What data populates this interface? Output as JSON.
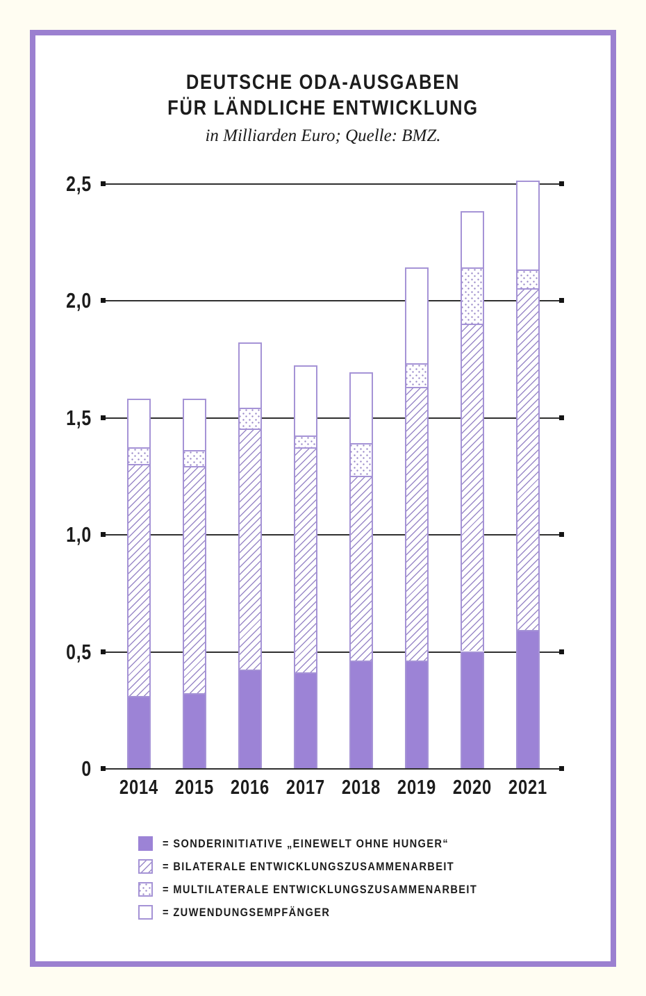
{
  "header": {
    "title_line1": "DEUTSCHE ODA-AUSGABEN",
    "title_line2": "FÜR LÄNDLICHE ENTWICKLUNG",
    "subtitle": "in Milliarden Euro; Quelle: BMZ."
  },
  "colors": {
    "page_bg": "#fffdf2",
    "frame_purple": "#9b80d0",
    "bar_purple": "#9c83d6",
    "segment_border": "#a593d6",
    "pattern_line": "#9a89c8",
    "axis_line": "#2f2f2f",
    "text": "#1c1c1c"
  },
  "legend": [
    {
      "pattern": "solid",
      "label": "= SONDERINITIATIVE „EINEWELT OHNE HUNGER“"
    },
    {
      "pattern": "hatch",
      "label": "= BILATERALE ENTWICKLUNGSZUSAMMENARBEIT"
    },
    {
      "pattern": "dots",
      "label": "= MULTILATERALE ENTWICKLUNGSZUSAMMENARBEIT"
    },
    {
      "pattern": "outline",
      "label": "= ZUWENDUNGSEMPFÄNGER"
    }
  ],
  "chart_data": {
    "type": "bar",
    "stacked": true,
    "title": "Deutsche ODA-Ausgaben für ländliche Entwicklung",
    "subtitle": "in Milliarden Euro; Quelle: BMZ.",
    "categories": [
      "2014",
      "2015",
      "2016",
      "2017",
      "2018",
      "2019",
      "2020",
      "2021"
    ],
    "series": [
      {
        "name": "Sonderinitiative „EineWelt ohne Hunger“",
        "pattern": "solid",
        "values": [
          0.31,
          0.32,
          0.42,
          0.41,
          0.46,
          0.46,
          0.5,
          0.59
        ]
      },
      {
        "name": "Bilaterale Entwicklungszusammenarbeit",
        "pattern": "hatch",
        "values": [
          0.99,
          0.97,
          1.03,
          0.96,
          0.79,
          1.17,
          1.4,
          1.46
        ]
      },
      {
        "name": "Multilaterale Entwicklungszusammenarbeit",
        "pattern": "dots",
        "values": [
          0.07,
          0.07,
          0.09,
          0.05,
          0.14,
          0.1,
          0.24,
          0.08
        ]
      },
      {
        "name": "Zuwendungsempfänger",
        "pattern": "outline",
        "values": [
          0.21,
          0.22,
          0.28,
          0.3,
          0.3,
          0.41,
          0.24,
          0.38
        ]
      }
    ],
    "totals": [
      1.58,
      1.58,
      1.82,
      1.72,
      1.69,
      2.14,
      2.38,
      2.51
    ],
    "ylim": [
      0,
      2.5
    ],
    "yticks": [
      {
        "value": 0,
        "label": "0"
      },
      {
        "value": 0.5,
        "label": "0,5"
      },
      {
        "value": 1,
        "label": "1,0"
      },
      {
        "value": 1.5,
        "label": "1,5"
      },
      {
        "value": 2,
        "label": "2,0"
      },
      {
        "value": 2.5,
        "label": "2,5"
      }
    ],
    "grid": true,
    "legend_position": "bottom"
  }
}
